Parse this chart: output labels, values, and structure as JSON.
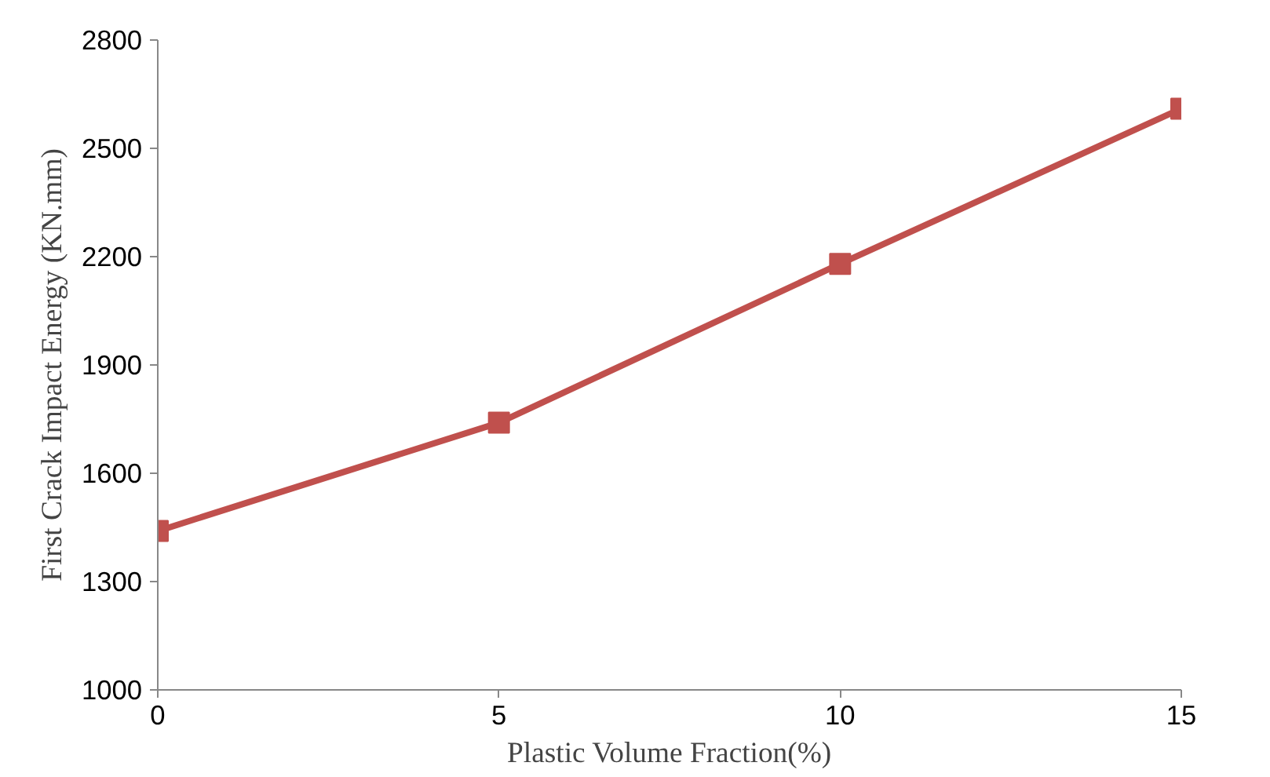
{
  "chart_data": {
    "type": "line",
    "xlabel": "Plastic Volume Fraction(%)",
    "ylabel": "First Crack Impact Energy (KN.mm)",
    "x": [
      0,
      5,
      10,
      15
    ],
    "series": [
      {
        "color": "#c0504d",
        "values": [
          1440,
          1740,
          2180,
          2610
        ]
      }
    ],
    "xlim": [
      0,
      15
    ],
    "xticks": [
      0,
      5,
      10,
      15
    ],
    "ylim": [
      1000,
      2800
    ],
    "yticks": [
      1000,
      1300,
      1600,
      1900,
      2200,
      2500,
      2800
    ],
    "marker": "square",
    "line_style": "solid"
  }
}
